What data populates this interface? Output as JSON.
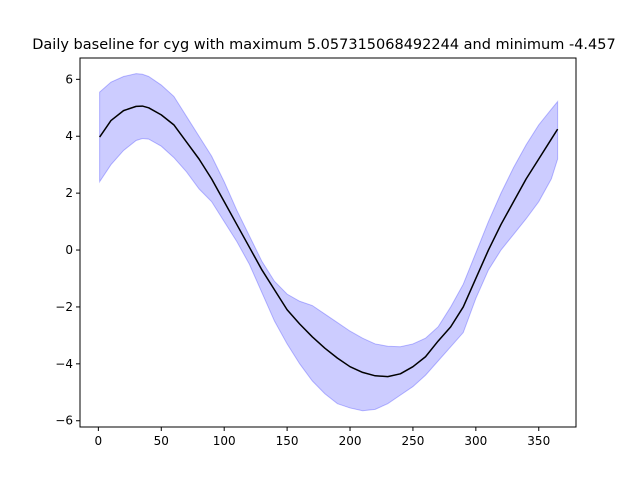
{
  "chart_data": {
    "type": "line",
    "title": "Daily baseline for cyg with maximum 5.057315068492244 and minimum -4.457",
    "xlabel": "",
    "ylabel": "",
    "xlim": [
      -14.6,
      379.6
    ],
    "ylim": [
      -6.22,
      6.75
    ],
    "x_ticks": [
      0,
      50,
      100,
      150,
      200,
      250,
      300,
      350
    ],
    "y_ticks": [
      -6,
      -4,
      -2,
      0,
      2,
      4,
      6
    ],
    "grid": false,
    "colors": {
      "line": "#000000",
      "band_fill": "#0000ff",
      "band_alpha": 0.2
    },
    "series": [
      {
        "x": [
          1,
          10,
          20,
          30,
          35,
          40,
          50,
          60,
          70,
          80,
          90,
          100,
          110,
          120,
          130,
          140,
          150,
          160,
          170,
          180,
          190,
          200,
          210,
          220,
          230,
          240,
          250,
          260,
          270,
          280,
          290,
          300,
          310,
          320,
          330,
          340,
          350,
          360,
          365
        ],
        "values": [
          3.97,
          4.55,
          4.9,
          5.05,
          5.06,
          5.0,
          4.75,
          4.4,
          3.8,
          3.2,
          2.5,
          1.7,
          0.9,
          0.1,
          -0.7,
          -1.4,
          -2.1,
          -2.6,
          -3.05,
          -3.45,
          -3.8,
          -4.1,
          -4.3,
          -4.42,
          -4.45,
          -4.35,
          -4.1,
          -3.75,
          -3.2,
          -2.7,
          -2.0,
          -1.0,
          0.0,
          0.9,
          1.7,
          2.5,
          3.2,
          3.9,
          4.25
        ],
        "lower": [
          2.4,
          3.0,
          3.5,
          3.85,
          3.92,
          3.9,
          3.65,
          3.25,
          2.75,
          2.15,
          1.7,
          1.0,
          0.3,
          -0.5,
          -1.5,
          -2.5,
          -3.3,
          -4.0,
          -4.6,
          -5.05,
          -5.4,
          -5.55,
          -5.65,
          -5.6,
          -5.4,
          -5.1,
          -4.8,
          -4.4,
          -3.9,
          -3.4,
          -2.9,
          -1.7,
          -0.7,
          0.0,
          0.55,
          1.1,
          1.7,
          2.5,
          3.2
        ],
        "upper": [
          5.55,
          5.9,
          6.1,
          6.2,
          6.18,
          6.1,
          5.8,
          5.4,
          4.7,
          4.0,
          3.3,
          2.4,
          1.4,
          0.5,
          -0.4,
          -1.1,
          -1.55,
          -1.8,
          -1.95,
          -2.25,
          -2.55,
          -2.85,
          -3.1,
          -3.3,
          -3.38,
          -3.4,
          -3.3,
          -3.1,
          -2.7,
          -2.0,
          -1.2,
          -0.1,
          1.0,
          2.0,
          2.9,
          3.7,
          4.4,
          4.95,
          5.22
        ]
      }
    ]
  }
}
